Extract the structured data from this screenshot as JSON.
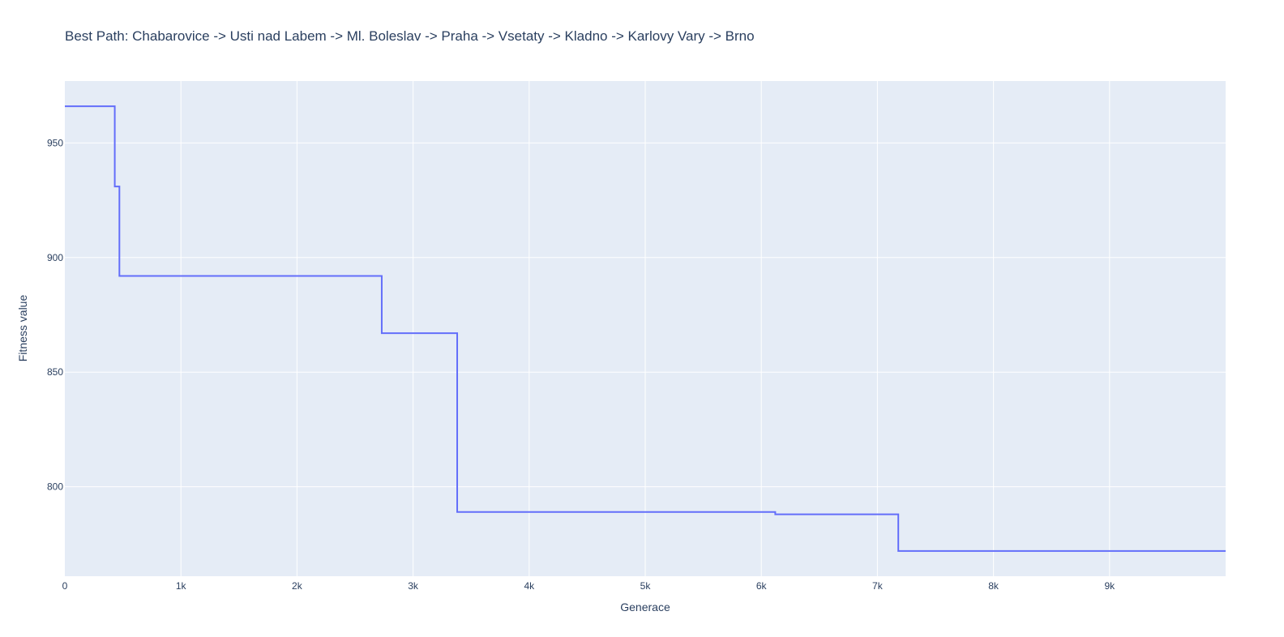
{
  "chart_data": {
    "type": "line",
    "line_shape": "step",
    "title": "Best Path: Chabarovice -> Usti nad Labem -> Ml. Boleslav -> Praha -> Vsetaty -> Kladno -> Karlovy Vary -> Brno",
    "xlabel": "Generace",
    "ylabel": "Fitness value",
    "xlim": [
      0,
      10000
    ],
    "ylim": [
      761,
      977
    ],
    "x_ticks": [
      0,
      1000,
      2000,
      3000,
      4000,
      5000,
      6000,
      7000,
      8000,
      9000
    ],
    "x_tick_labels": [
      "0",
      "1k",
      "2k",
      "3k",
      "4k",
      "5k",
      "6k",
      "7k",
      "8k",
      "9k"
    ],
    "y_ticks": [
      800,
      850,
      900,
      950
    ],
    "y_tick_labels": [
      "800",
      "850",
      "900",
      "950"
    ],
    "grid": true,
    "colors": {
      "plot_bg": "#e5ecf6",
      "grid": "#ffffff",
      "line": "#636efa",
      "text": "#2a3f5f"
    },
    "series": [
      {
        "x": [
          0,
          430,
          470,
          2730,
          3380,
          6120,
          7180,
          10000
        ],
        "values": [
          966,
          931,
          892,
          867,
          789,
          788,
          772,
          772
        ]
      }
    ]
  }
}
